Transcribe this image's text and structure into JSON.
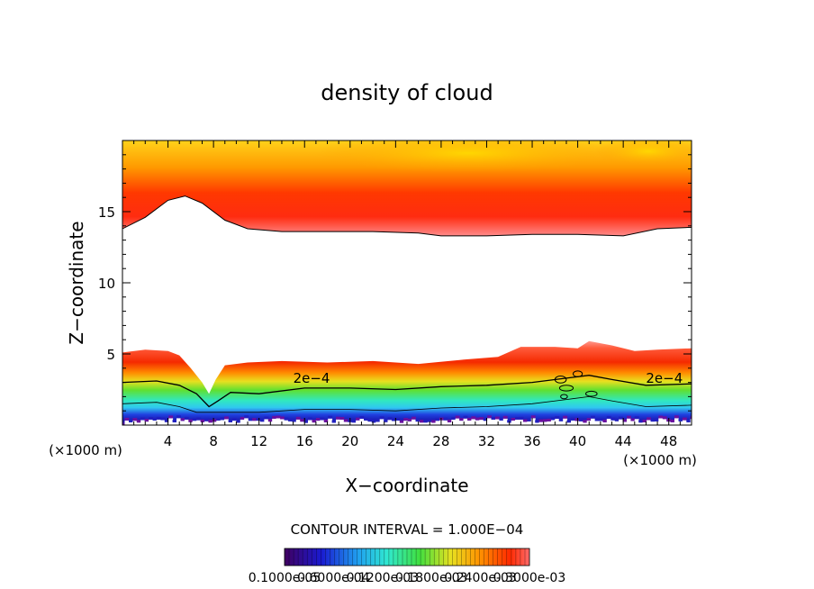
{
  "chart_data": {
    "type": "heatmap",
    "title": "density of cloud",
    "xlabel": "X−coordinate",
    "ylabel": "Z−coordinate",
    "x_unit_left": "(×1000 m)",
    "x_unit_right": "(×1000 m)",
    "xlim": [
      0,
      50
    ],
    "ylim": [
      0,
      20
    ],
    "x_ticks": [
      4,
      8,
      12,
      16,
      20,
      24,
      28,
      32,
      36,
      40,
      44,
      48
    ],
    "x_tick_labels": [
      "4",
      "8",
      "12",
      "16",
      "20",
      "24",
      "28",
      "32",
      "36",
      "40",
      "44",
      "48"
    ],
    "y_ticks": [
      5,
      10,
      15
    ],
    "y_tick_labels": [
      "5",
      "10",
      "15"
    ],
    "contour_interval_text": "CONTOUR INTERVAL = 1.000E−04",
    "contour_labels": [
      {
        "text": "2e−4",
        "x": 15,
        "z": 2.6
      },
      {
        "text": "2e−4",
        "x": 46,
        "z": 2.6
      }
    ],
    "colorbar_labels": [
      "0.1000e-05",
      "0.6000e-04",
      "0.1200e-03",
      "0.1800e-03",
      "0.2400e-03",
      "0.3000e-03"
    ],
    "upper_cloud_base_km": [
      [
        0,
        13.8
      ],
      [
        2,
        14.6
      ],
      [
        4,
        15.8
      ],
      [
        5.5,
        16.1
      ],
      [
        7,
        15.6
      ],
      [
        9,
        14.4
      ],
      [
        11,
        13.8
      ],
      [
        14,
        13.6
      ],
      [
        18,
        13.6
      ],
      [
        22,
        13.6
      ],
      [
        26,
        13.5
      ],
      [
        28,
        13.3
      ],
      [
        32,
        13.3
      ],
      [
        36,
        13.4
      ],
      [
        40,
        13.4
      ],
      [
        44,
        13.3
      ],
      [
        47,
        13.8
      ],
      [
        50,
        13.9
      ]
    ],
    "lower_cloud_top_km": [
      [
        0,
        5.1
      ],
      [
        2,
        5.3
      ],
      [
        4,
        5.2
      ],
      [
        5,
        4.9
      ],
      [
        6,
        4.0
      ],
      [
        7,
        3.0
      ],
      [
        7.6,
        2.2
      ],
      [
        8.2,
        3.2
      ],
      [
        9,
        4.2
      ],
      [
        11,
        4.4
      ],
      [
        14,
        4.5
      ],
      [
        18,
        4.4
      ],
      [
        22,
        4.5
      ],
      [
        26,
        4.3
      ],
      [
        30,
        4.6
      ],
      [
        33,
        4.8
      ],
      [
        35,
        5.5
      ],
      [
        38,
        5.5
      ],
      [
        40,
        5.4
      ],
      [
        41,
        5.9
      ],
      [
        43,
        5.6
      ],
      [
        45,
        5.2
      ],
      [
        47,
        5.3
      ],
      [
        50,
        5.4
      ]
    ],
    "contour_2e4_km": [
      [
        0,
        3.0
      ],
      [
        3,
        3.1
      ],
      [
        5,
        2.8
      ],
      [
        6.5,
        2.2
      ],
      [
        7.6,
        1.3
      ],
      [
        8.4,
        1.7
      ],
      [
        9.5,
        2.3
      ],
      [
        12,
        2.2
      ],
      [
        16,
        2.6
      ],
      [
        20,
        2.6
      ],
      [
        24,
        2.5
      ],
      [
        28,
        2.7
      ],
      [
        32,
        2.8
      ],
      [
        36,
        3.0
      ],
      [
        39,
        3.3
      ],
      [
        41,
        3.5
      ],
      [
        43,
        3.2
      ],
      [
        46,
        2.8
      ],
      [
        50,
        2.9
      ]
    ],
    "colors": {
      "background": "#ffffff",
      "axis": "#000000",
      "core_red": "#f52a00",
      "upper_yellow": "#ffd000",
      "green": "#30e030",
      "cyan": "#30e8f0",
      "blue": "#1818d0",
      "purple": "#7010a0"
    }
  }
}
